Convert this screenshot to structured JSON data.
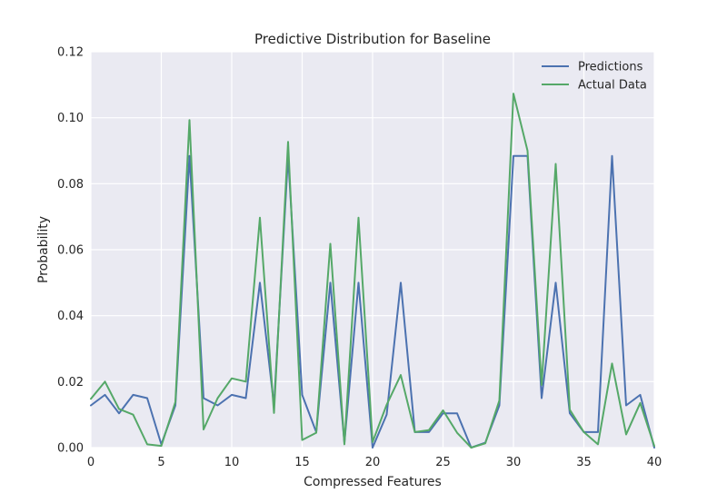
{
  "chart_data": {
    "type": "line",
    "title": "Predictive Distribution for Baseline",
    "xlabel": "Compressed Features",
    "ylabel": "Probability",
    "xlim": [
      0,
      40
    ],
    "ylim": [
      0,
      0.12
    ],
    "xticks": [
      0,
      5,
      10,
      15,
      20,
      25,
      30,
      35,
      40
    ],
    "yticks": [
      0.0,
      0.02,
      0.04,
      0.06,
      0.08,
      0.1,
      0.12
    ],
    "xtick_labels": [
      "0",
      "5",
      "10",
      "15",
      "20",
      "25",
      "30",
      "35",
      "40"
    ],
    "ytick_labels": [
      "0.00",
      "0.02",
      "0.04",
      "0.06",
      "0.08",
      "0.10",
      "0.12"
    ],
    "grid": true,
    "legend_position": "top-right",
    "x": [
      0,
      1,
      2,
      3,
      4,
      5,
      6,
      7,
      8,
      9,
      10,
      11,
      12,
      13,
      14,
      15,
      16,
      17,
      18,
      19,
      20,
      21,
      22,
      23,
      24,
      25,
      26,
      27,
      28,
      29,
      30,
      31,
      32,
      33,
      34,
      35,
      36,
      37,
      38,
      39,
      40
    ],
    "series": [
      {
        "name": "Predictions",
        "color": "#4c72b0",
        "values": [
          0.0128,
          0.016,
          0.0104,
          0.016,
          0.015,
          0.001,
          0.0128,
          0.0884,
          0.015,
          0.0128,
          0.016,
          0.015,
          0.05,
          0.0128,
          0.0884,
          0.016,
          0.0047,
          0.05,
          0.0015,
          0.05,
          0.0,
          0.01,
          0.05,
          0.0047,
          0.0047,
          0.0104,
          0.0104,
          0.0,
          0.0015,
          0.0128,
          0.0884,
          0.0884,
          0.015,
          0.05,
          0.0104,
          0.0047,
          0.0047,
          0.0884,
          0.0128,
          0.016,
          0.0
        ]
      },
      {
        "name": "Actual Data",
        "color": "#55a868",
        "values": [
          0.0148,
          0.02,
          0.0117,
          0.01,
          0.001,
          0.0005,
          0.0138,
          0.0993,
          0.0055,
          0.015,
          0.021,
          0.02,
          0.0697,
          0.0105,
          0.0927,
          0.0023,
          0.0045,
          0.0618,
          0.001,
          0.0697,
          0.0017,
          0.013,
          0.022,
          0.0047,
          0.0053,
          0.0113,
          0.0045,
          0.0,
          0.0013,
          0.0143,
          0.1073,
          0.09,
          0.019,
          0.086,
          0.0115,
          0.0047,
          0.001,
          0.0255,
          0.004,
          0.0135,
          0.0005
        ]
      }
    ]
  }
}
